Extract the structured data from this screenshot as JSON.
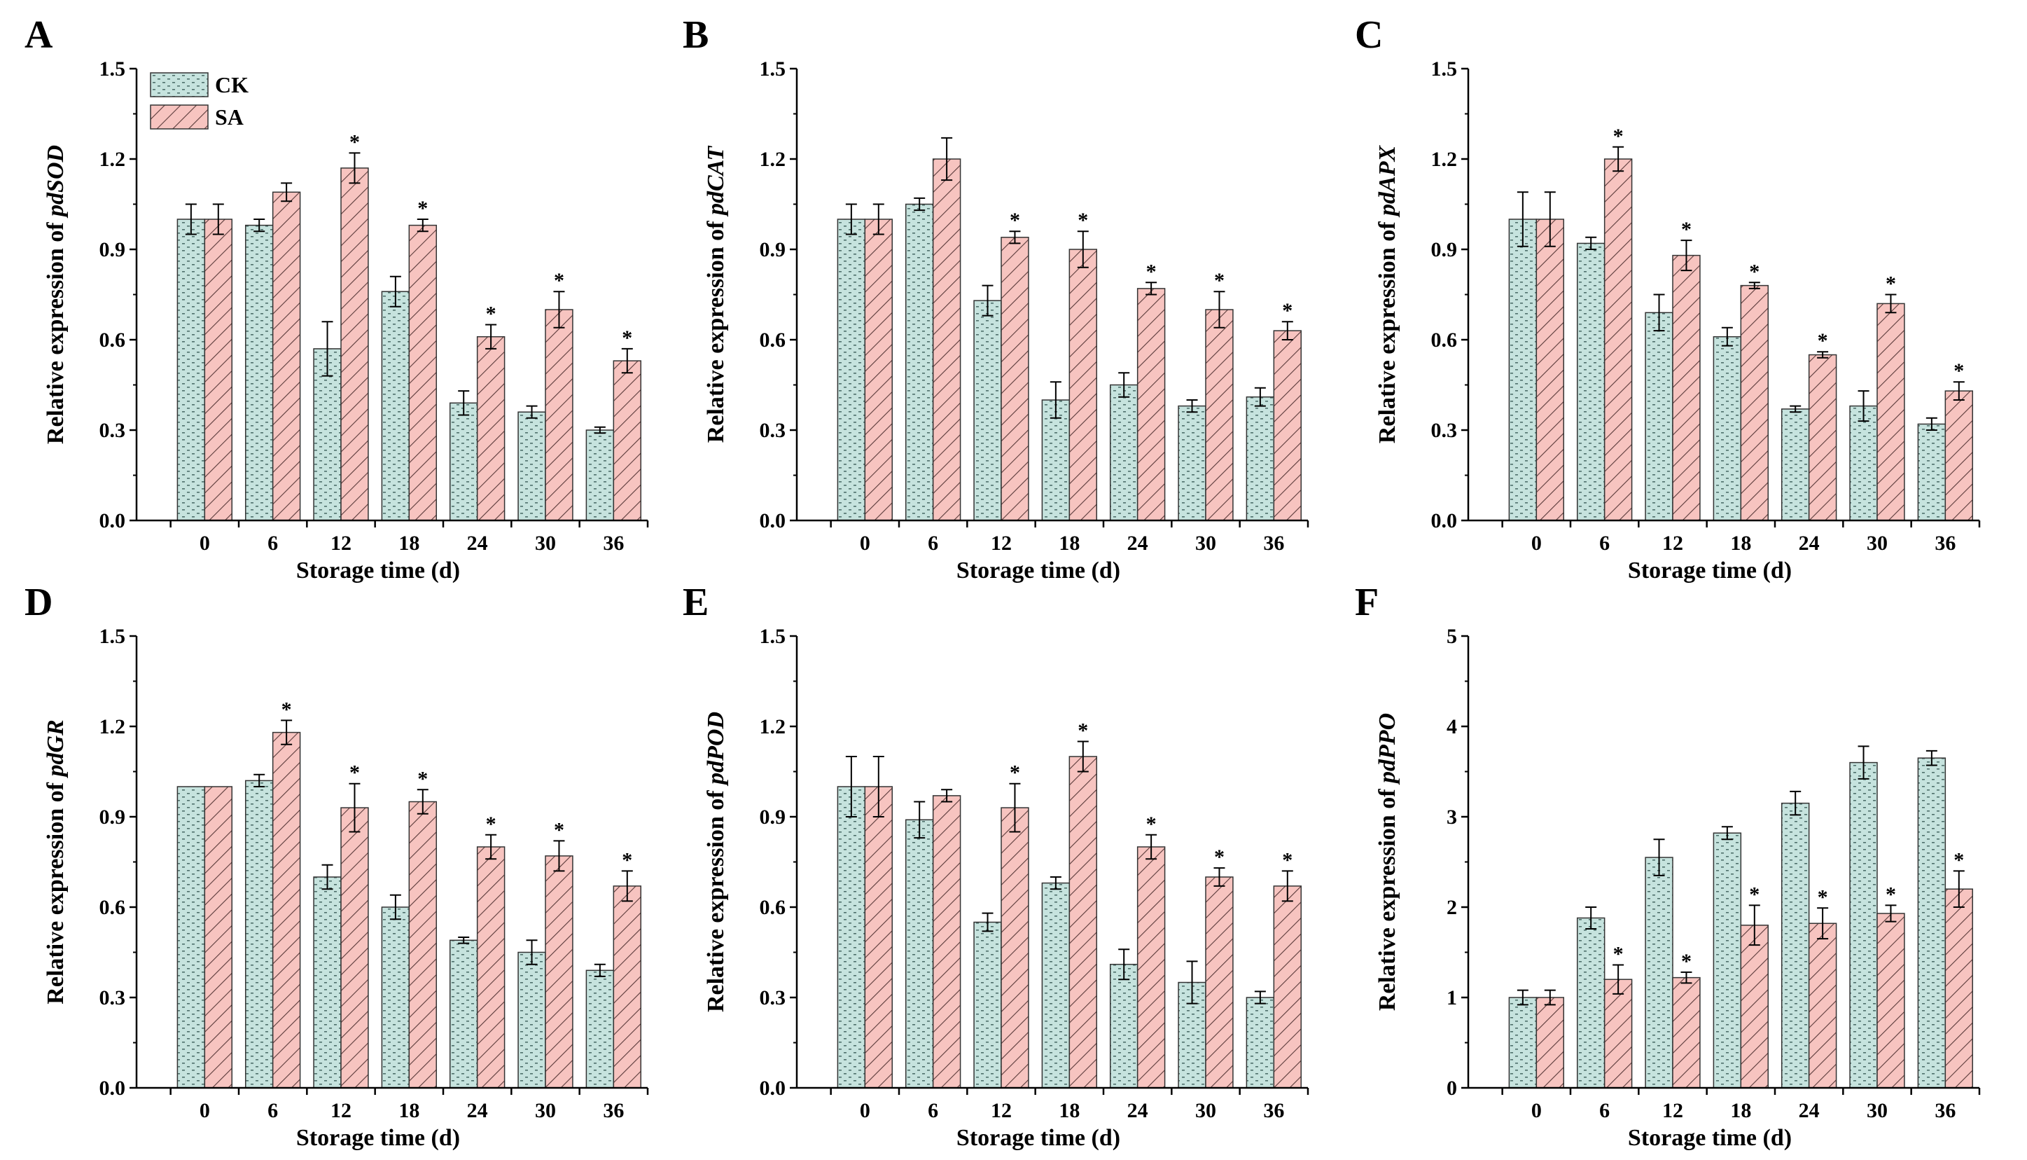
{
  "legend": [
    {
      "key": "CK",
      "label": "CK",
      "fill": "#c6e3de",
      "stroke": "#333333"
    },
    {
      "key": "SA",
      "label": "SA",
      "fill": "#f7c4c0",
      "stroke": "#333333"
    }
  ],
  "colors": {
    "ck_fill": "#c6e3de",
    "sa_fill": "#f7c4c0",
    "ck_dot": "#4e6f6b",
    "sa_hatch": "#5a3a3a",
    "axis": "#000000"
  },
  "significance_marker": "*",
  "chart_data": [
    {
      "panel": "A",
      "type": "bar",
      "categories": [
        "0",
        "6",
        "12",
        "18",
        "24",
        "30",
        "36"
      ],
      "xlabel": "Storage time (d)",
      "ylabel_prefix": "Relative expression of ",
      "ylabel_gene": "pdSOD",
      "ylim": [
        0,
        1.5
      ],
      "yticks": [
        "0.0",
        "0.3",
        "0.6",
        "0.9",
        "1.2",
        "1.5"
      ],
      "series": [
        {
          "name": "CK",
          "values": [
            1.0,
            0.98,
            0.57,
            0.76,
            0.39,
            0.36,
            0.3
          ],
          "errors": [
            0.05,
            0.02,
            0.09,
            0.05,
            0.04,
            0.02,
            0.01
          ],
          "sig": [
            false,
            false,
            false,
            false,
            false,
            false,
            false
          ]
        },
        {
          "name": "SA",
          "values": [
            1.0,
            1.09,
            1.17,
            0.98,
            0.61,
            0.7,
            0.53
          ],
          "errors": [
            0.05,
            0.03,
            0.05,
            0.02,
            0.04,
            0.06,
            0.04
          ],
          "sig": [
            false,
            false,
            true,
            true,
            true,
            true,
            true
          ]
        }
      ],
      "show_legend": true
    },
    {
      "panel": "B",
      "type": "bar",
      "categories": [
        "0",
        "6",
        "12",
        "18",
        "24",
        "30",
        "36"
      ],
      "xlabel": "Storage time (d)",
      "ylabel_prefix": "Relative expression of ",
      "ylabel_gene": "pdCAT",
      "ylim": [
        0,
        1.5
      ],
      "yticks": [
        "0.0",
        "0.3",
        "0.6",
        "0.9",
        "1.2",
        "1.5"
      ],
      "series": [
        {
          "name": "CK",
          "values": [
            1.0,
            1.05,
            0.73,
            0.4,
            0.45,
            0.38,
            0.41
          ],
          "errors": [
            0.05,
            0.02,
            0.05,
            0.06,
            0.04,
            0.02,
            0.03
          ],
          "sig": [
            false,
            false,
            false,
            false,
            false,
            false,
            false
          ]
        },
        {
          "name": "SA",
          "values": [
            1.0,
            1.2,
            0.94,
            0.9,
            0.77,
            0.7,
            0.63
          ],
          "errors": [
            0.05,
            0.07,
            0.02,
            0.06,
            0.02,
            0.06,
            0.03
          ],
          "sig": [
            false,
            false,
            true,
            true,
            true,
            true,
            true
          ]
        }
      ],
      "show_legend": false
    },
    {
      "panel": "C",
      "type": "bar",
      "categories": [
        "0",
        "6",
        "12",
        "18",
        "24",
        "30",
        "36"
      ],
      "xlabel": "Storage time (d)",
      "ylabel_prefix": "Relative expression of ",
      "ylabel_gene": "pdAPX",
      "ylim": [
        0,
        1.5
      ],
      "yticks": [
        "0.0",
        "0.3",
        "0.6",
        "0.9",
        "1.2",
        "1.5"
      ],
      "series": [
        {
          "name": "CK",
          "values": [
            1.0,
            0.92,
            0.69,
            0.61,
            0.37,
            0.38,
            0.32
          ],
          "errors": [
            0.09,
            0.02,
            0.06,
            0.03,
            0.01,
            0.05,
            0.02
          ],
          "sig": [
            false,
            false,
            false,
            false,
            false,
            false,
            false
          ]
        },
        {
          "name": "SA",
          "values": [
            1.0,
            1.2,
            0.88,
            0.78,
            0.55,
            0.72,
            0.43
          ],
          "errors": [
            0.09,
            0.04,
            0.05,
            0.01,
            0.01,
            0.03,
            0.03
          ],
          "sig": [
            false,
            true,
            true,
            true,
            true,
            true,
            true
          ]
        }
      ],
      "show_legend": false
    },
    {
      "panel": "D",
      "type": "bar",
      "categories": [
        "0",
        "6",
        "12",
        "18",
        "24",
        "30",
        "36"
      ],
      "xlabel": "Storage time (d)",
      "ylabel_prefix": "Relative expression of ",
      "ylabel_gene": "pdGR",
      "ylim": [
        0,
        1.5
      ],
      "yticks": [
        "0.0",
        "0.3",
        "0.6",
        "0.9",
        "1.2",
        "1.5"
      ],
      "series": [
        {
          "name": "CK",
          "values": [
            1.0,
            1.02,
            0.7,
            0.6,
            0.49,
            0.45,
            0.39
          ],
          "errors": [
            0.0,
            0.02,
            0.04,
            0.04,
            0.01,
            0.04,
            0.02
          ],
          "sig": [
            false,
            false,
            false,
            false,
            false,
            false,
            false
          ]
        },
        {
          "name": "SA",
          "values": [
            1.0,
            1.18,
            0.93,
            0.95,
            0.8,
            0.77,
            0.67
          ],
          "errors": [
            0.0,
            0.04,
            0.08,
            0.04,
            0.04,
            0.05,
            0.05
          ],
          "sig": [
            false,
            true,
            true,
            true,
            true,
            true,
            true
          ]
        }
      ],
      "show_legend": false
    },
    {
      "panel": "E",
      "type": "bar",
      "categories": [
        "0",
        "6",
        "12",
        "18",
        "24",
        "30",
        "36"
      ],
      "xlabel": "Storage time (d)",
      "ylabel_prefix": "Relative expression of ",
      "ylabel_gene": "pdPOD",
      "ylim": [
        0,
        1.5
      ],
      "yticks": [
        "0.0",
        "0.3",
        "0.6",
        "0.9",
        "1.2",
        "1.5"
      ],
      "series": [
        {
          "name": "CK",
          "values": [
            1.0,
            0.89,
            0.55,
            0.68,
            0.41,
            0.35,
            0.3
          ],
          "errors": [
            0.1,
            0.06,
            0.03,
            0.02,
            0.05,
            0.07,
            0.02
          ],
          "sig": [
            false,
            false,
            false,
            false,
            false,
            false,
            false
          ]
        },
        {
          "name": "SA",
          "values": [
            1.0,
            0.97,
            0.93,
            1.1,
            0.8,
            0.7,
            0.67
          ],
          "errors": [
            0.1,
            0.02,
            0.08,
            0.05,
            0.04,
            0.03,
            0.05
          ],
          "sig": [
            false,
            false,
            true,
            true,
            true,
            true,
            true
          ]
        }
      ],
      "show_legend": false
    },
    {
      "panel": "F",
      "type": "bar",
      "categories": [
        "0",
        "6",
        "12",
        "18",
        "24",
        "30",
        "36"
      ],
      "xlabel": "Storage time (d)",
      "ylabel_prefix": "Relative expression of ",
      "ylabel_gene": "pdPPO",
      "ylim": [
        0,
        5
      ],
      "yticks": [
        "0",
        "1",
        "2",
        "3",
        "4",
        "5"
      ],
      "series": [
        {
          "name": "CK",
          "values": [
            1.0,
            1.88,
            2.55,
            2.82,
            3.15,
            3.6,
            3.65
          ],
          "errors": [
            0.08,
            0.12,
            0.2,
            0.07,
            0.13,
            0.18,
            0.08
          ],
          "sig": [
            false,
            false,
            false,
            false,
            false,
            false,
            false
          ]
        },
        {
          "name": "SA",
          "values": [
            1.0,
            1.2,
            1.22,
            1.8,
            1.82,
            1.93,
            2.2
          ],
          "errors": [
            0.08,
            0.16,
            0.06,
            0.22,
            0.17,
            0.09,
            0.2
          ],
          "sig": [
            false,
            true,
            true,
            true,
            true,
            true,
            true
          ]
        }
      ],
      "show_legend": false
    }
  ]
}
